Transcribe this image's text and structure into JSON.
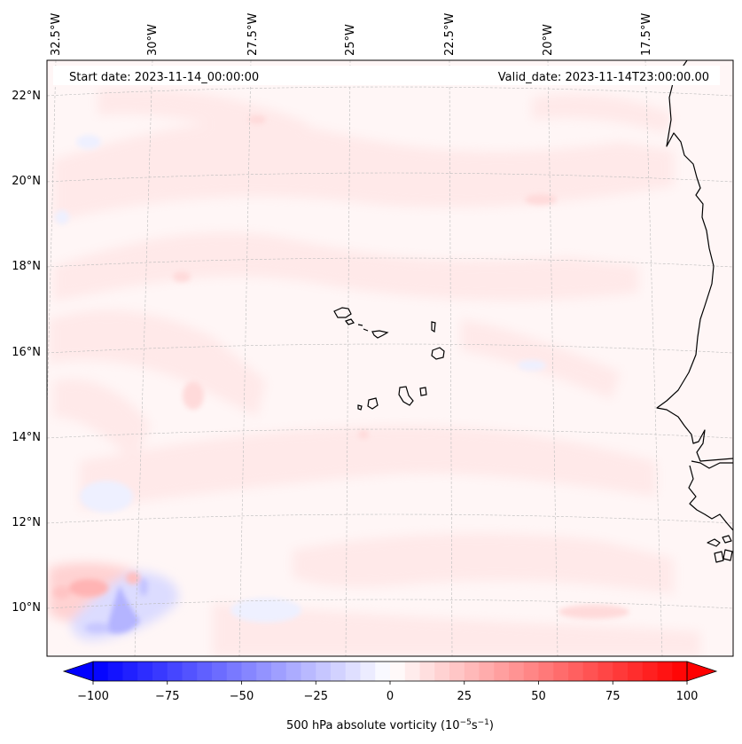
{
  "header": {
    "start_date": "Start date: 2023-11-14_00:00:00",
    "valid_date": "Valid_date: 2023-11-14T23:00:00.00"
  },
  "axes": {
    "lon_labels": [
      "32.5°W",
      "30°W",
      "27.5°W",
      "25°W",
      "22.5°W",
      "20°W",
      "17.5°W"
    ],
    "lat_labels": [
      "22°N",
      "20°N",
      "18°N",
      "16°N",
      "14°N",
      "12°N",
      "10°N"
    ]
  },
  "colorbar": {
    "ticks": [
      "−100",
      "−75",
      "−50",
      "−25",
      "0",
      "25",
      "50",
      "75",
      "100"
    ],
    "label_main": "500 hPa absolute vorticity (10",
    "label_exp1": "−5",
    "label_mid": "s",
    "label_exp2": "−1",
    "label_end": ")",
    "vmin": -100,
    "vmax": 100,
    "step": 5,
    "low_color": "#0000ff",
    "high_color": "#ff0000"
  },
  "colors": {
    "background_field": "#fff6f6",
    "positive_weak": "#ffe9e9",
    "positive_moderate": "#ffcfcf",
    "negative_weak": "#eef0ff",
    "negative_moderate": "#c8c8ff",
    "coastline": "#000000",
    "gridline": "#bbbbbb"
  }
}
